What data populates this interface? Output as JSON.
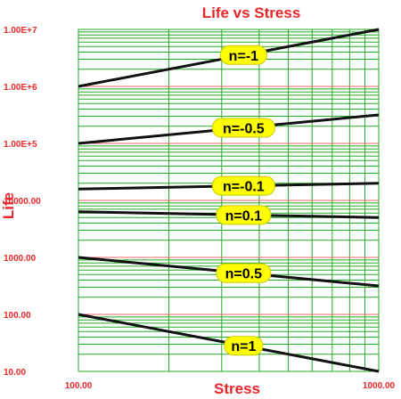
{
  "chart_data": {
    "type": "line",
    "title": "Life vs Stress",
    "xlabel": "Stress",
    "ylabel": "Life",
    "x_scale": "log",
    "y_scale": "log",
    "xlim": [
      100,
      1000
    ],
    "ylim": [
      10,
      10000000
    ],
    "x_tick_labels": [
      "100.00",
      "1000.00"
    ],
    "y_tick_labels": [
      "10.00",
      "100.00",
      "1000.00",
      "10000.00",
      "1.00E+5",
      "1.00E+6",
      "1.00E+7"
    ],
    "grid": true,
    "colors": {
      "title": "#e8262a",
      "axis_text": "#e8262a",
      "grid_minor": "#22aa22",
      "grid_decade": "#e86a6a",
      "line": "#111111",
      "label_fill": "#ffff00",
      "label_border": "#c8c800"
    },
    "series": [
      {
        "name": "n=-1",
        "x": [
          100,
          1000
        ],
        "y": [
          1000000,
          10000000
        ]
      },
      {
        "name": "n=-0.5",
        "x": [
          100,
          1000
        ],
        "y": [
          100000,
          316228
        ]
      },
      {
        "name": "n=-0.1",
        "x": [
          100,
          1000
        ],
        "y": [
          15849,
          19953
        ]
      },
      {
        "name": "n=0.1",
        "x": [
          100,
          1000
        ],
        "y": [
          6310,
          5012
        ]
      },
      {
        "name": "n=0.5",
        "x": [
          100,
          1000
        ],
        "y": [
          1000,
          316
        ]
      },
      {
        "name": "n=1",
        "x": [
          100,
          1000
        ],
        "y": [
          100,
          10
        ]
      }
    ]
  }
}
